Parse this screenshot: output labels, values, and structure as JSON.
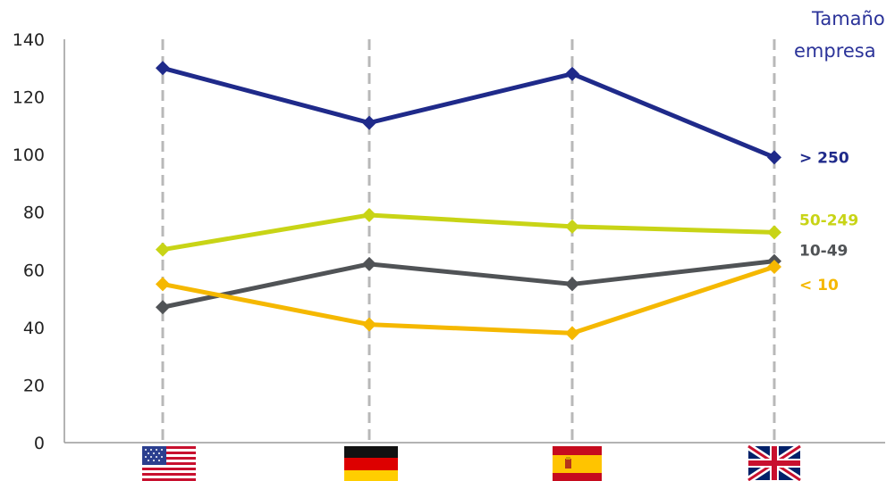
{
  "chart_data": {
    "type": "line",
    "title": "",
    "xlabel": "",
    "ylabel": "",
    "ylim": [
      0,
      140
    ],
    "y_ticks": [
      "0",
      "20",
      "40",
      "60",
      "80",
      "100",
      "120",
      "140"
    ],
    "grid": "vertical dashed lines at each category",
    "categories": [
      "USA",
      "Germany",
      "Spain",
      "United Kingdom"
    ],
    "category_icons": [
      "us-flag-icon",
      "germany-flag-icon",
      "spain-flag-icon",
      "uk-flag-icon"
    ],
    "legend": {
      "title_line1": "Tamaño",
      "title_line2": "empresa",
      "placement": "top-right"
    },
    "series": [
      {
        "name": "> 250",
        "color": "#1f2a8a",
        "values": [
          130,
          111,
          128,
          99
        ]
      },
      {
        "name": "50-249",
        "color": "#c8d416",
        "values": [
          67,
          79,
          75,
          73
        ]
      },
      {
        "name": "10-49",
        "color": "#505356",
        "values": [
          47,
          62,
          55,
          63
        ]
      },
      {
        "name": "< 10",
        "color": "#f5b800",
        "values": [
          55,
          41,
          38,
          61
        ]
      }
    ]
  }
}
